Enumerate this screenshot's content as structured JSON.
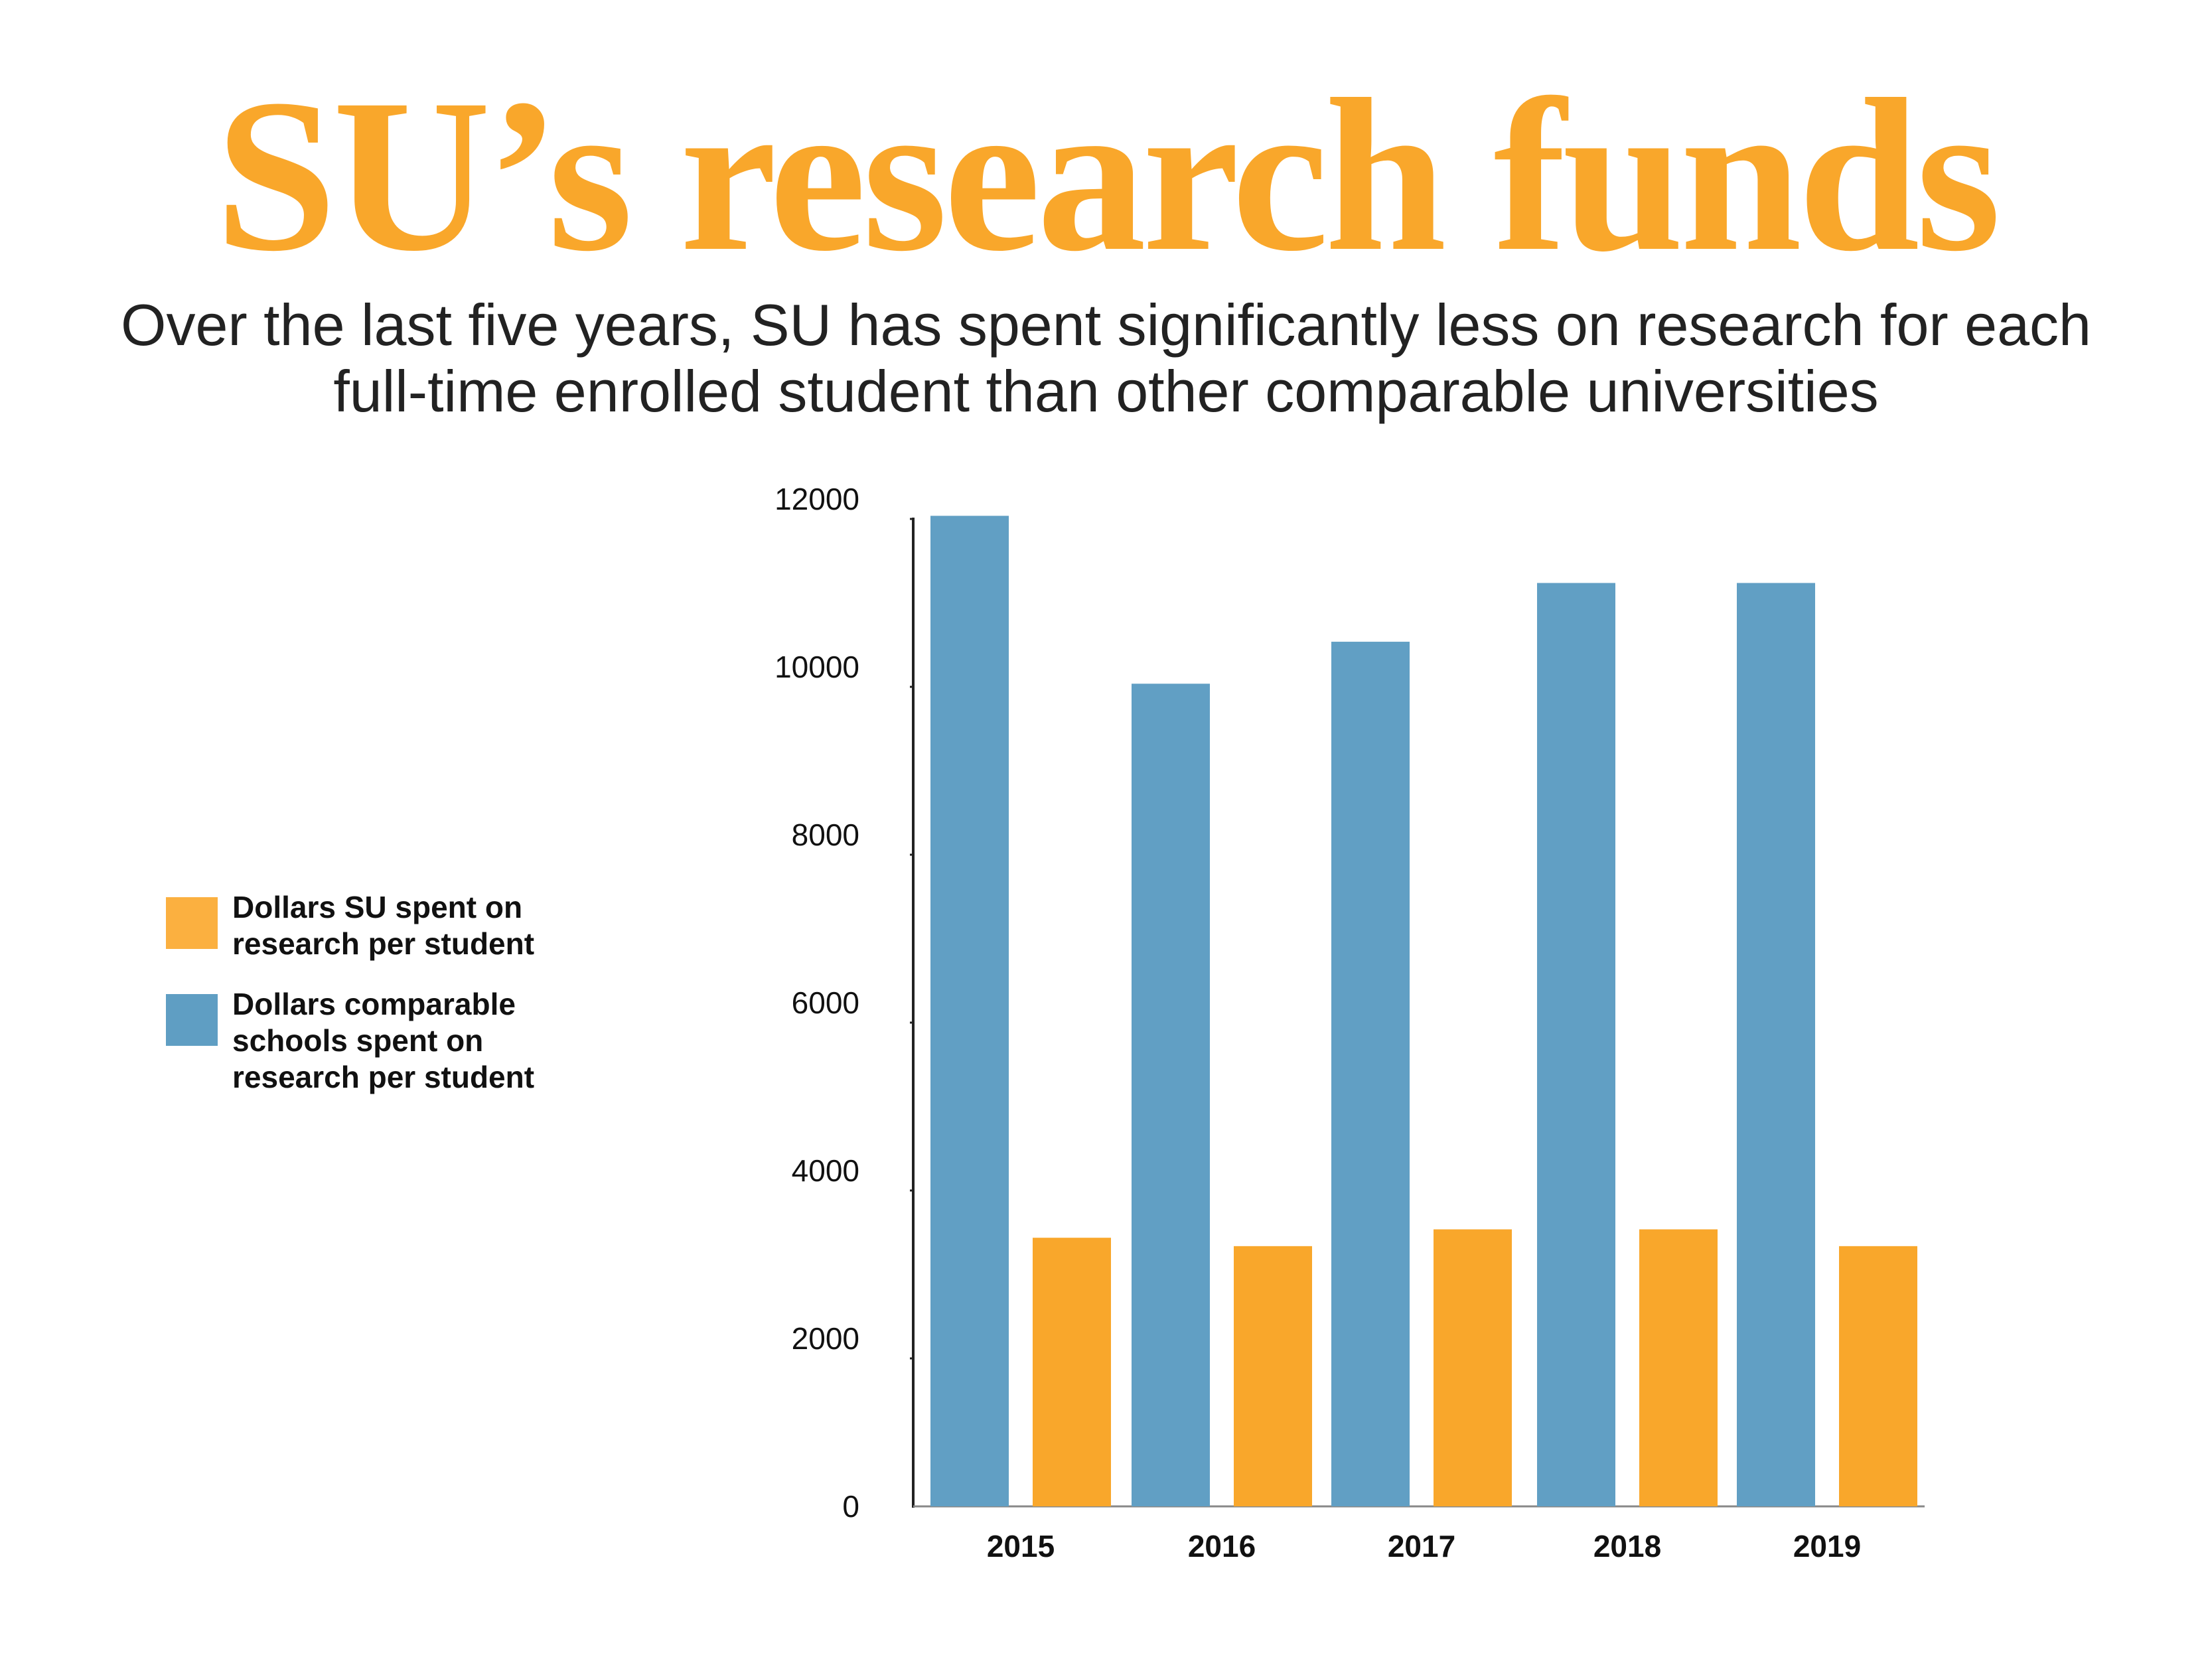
{
  "header": {
    "title": "SU’s research funds",
    "subtitle_lines": [
      "Over the last five years, SU has spent significantly less on research for each",
      "full-time enrolled student than other comparable universities"
    ]
  },
  "legend": {
    "items": [
      {
        "lines": [
          "Dollars SU spent on",
          "research per student"
        ],
        "color": "#FBB040"
      },
      {
        "lines": [
          "Dollars comparable",
          "schools spent on",
          "research per student"
        ],
        "color": "#5F9EC3"
      }
    ]
  },
  "colors": {
    "title": "#F9A72B",
    "comparable": "#619FC4",
    "su": "#F9A72B",
    "axis": "#222222"
  },
  "chart_data": {
    "type": "bar",
    "title": "SU’s research funds",
    "categories": [
      "2015",
      "2016",
      "2017",
      "2018",
      "2019"
    ],
    "series": [
      {
        "name": "Dollars comparable schools spent on research per student",
        "values": [
          11800,
          9800,
          10300,
          11000,
          11000
        ]
      },
      {
        "name": "Dollars SU spent on research per student",
        "values": [
          3200,
          3100,
          3300,
          3300,
          3100
        ]
      }
    ],
    "yticks": [
      "0",
      "2000",
      "4000",
      "6000",
      "8000",
      "10000",
      "12000"
    ],
    "ylim": [
      0,
      12000
    ],
    "xlabel": "",
    "ylabel": "",
    "grid": false,
    "legend_position": "left"
  }
}
